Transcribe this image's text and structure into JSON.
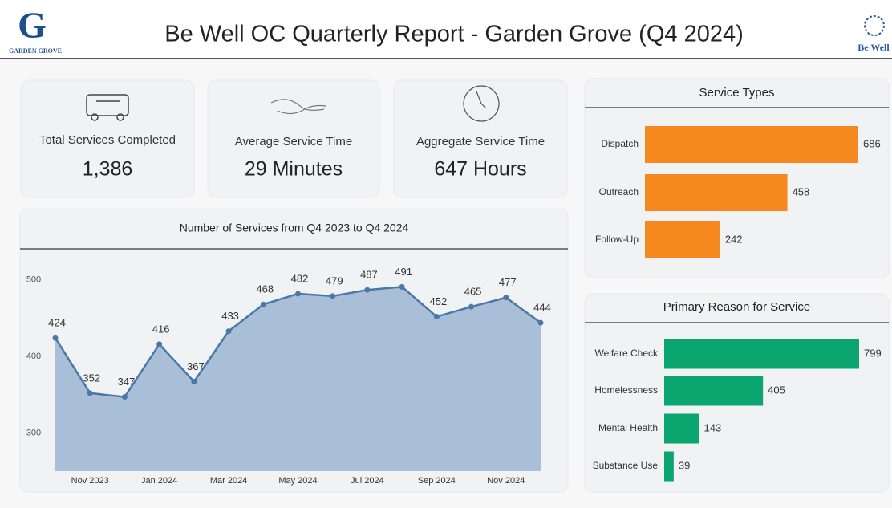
{
  "header": {
    "logo_letter": "G",
    "logo_text": "Garden Grove",
    "title": "Be Well OC Quarterly Report - Garden Grove (Q4 2024)",
    "right_logo": "Be Well"
  },
  "kpis": [
    {
      "label": "Total Services Completed",
      "value": "1,386"
    },
    {
      "label": "Average Service Time",
      "value": "29 Minutes"
    },
    {
      "label": "Aggregate Service Time",
      "value": "647 Hours"
    }
  ],
  "chart_data": [
    {
      "type": "line",
      "title": "Number of Services from Q4 2023 to Q4 2024",
      "categories": [
        null,
        "Nov 2023",
        null,
        "Jan 2024",
        null,
        "Mar 2024",
        null,
        "May 2024",
        null,
        "Jul 2024",
        null,
        "Sep 2024",
        null,
        "Nov 2024",
        null
      ],
      "values": [
        424,
        352,
        347,
        416,
        367,
        433,
        468,
        482,
        479,
        487,
        491,
        452,
        465,
        477,
        444
      ],
      "color": "#4a78a8",
      "area_color": "#a9bfd7",
      "ylim": [
        250,
        525
      ],
      "yticks": [
        300,
        400,
        500
      ],
      "grid": false
    },
    {
      "type": "hbar",
      "title": "Service Types",
      "categories": [
        "Dispatch",
        "Outreach",
        "Follow-Up"
      ],
      "values": [
        686,
        458,
        242
      ],
      "color": "#f5891f"
    },
    {
      "type": "hbar",
      "title": "Primary Reason for Service",
      "categories": [
        "Welfare Check",
        "Homelessness",
        "Mental Health",
        "Substance Use"
      ],
      "values": [
        799,
        405,
        143,
        39
      ],
      "color": "#0ba56f"
    }
  ]
}
